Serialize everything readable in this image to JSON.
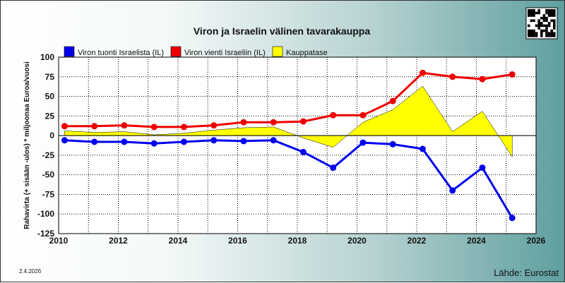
{
  "chart_data": {
    "type": "line",
    "title": "Viron ja Israelin välinen tavarakauppa",
    "ylabel": "Rahavirta (+ sisään -ulos)  * miljoonaa Euroa/vuosi",
    "xlabel": "",
    "xlim": [
      2010,
      2026
    ],
    "ylim": [
      -125,
      100
    ],
    "x_ticks": [
      2010,
      2012,
      2014,
      2016,
      2018,
      2020,
      2022,
      2024,
      2026
    ],
    "y_ticks": [
      100,
      75,
      50,
      25,
      0,
      -25,
      -50,
      -75,
      -100,
      -125
    ],
    "grid": true,
    "legend": "top-left",
    "x": [
      2010.2,
      2011.2,
      2012.2,
      2013.2,
      2014.2,
      2015.2,
      2016.2,
      2017.2,
      2018.2,
      2019.2,
      2020.2,
      2021.2,
      2022.2,
      2023.2,
      2024.2,
      2025.2
    ],
    "series": [
      {
        "name": "Viron tuonti Israelista (IL)",
        "color": "#0000ee",
        "values": [
          -6,
          -8,
          -8,
          -10,
          -8,
          -6,
          -7,
          -6,
          -21,
          -41,
          -9,
          -11,
          -17,
          -70,
          -41,
          -105
        ]
      },
      {
        "name": "Viron vienti Israeliin (IL)",
        "color": "#ee0000",
        "values": [
          12,
          12,
          13,
          11,
          11,
          13,
          17,
          17,
          18,
          26,
          26,
          44,
          80,
          75,
          72,
          78
        ]
      },
      {
        "name": "Kauppatase",
        "color": "#ffff00",
        "values": [
          6,
          4,
          5,
          1,
          3,
          7,
          10,
          11,
          -3,
          -15,
          17,
          33,
          63,
          5,
          31,
          -27
        ]
      }
    ]
  },
  "footer": {
    "date": "2.4.2026",
    "source": "Lähde: Eurostat"
  },
  "qr_icon": "qr-code-icon"
}
